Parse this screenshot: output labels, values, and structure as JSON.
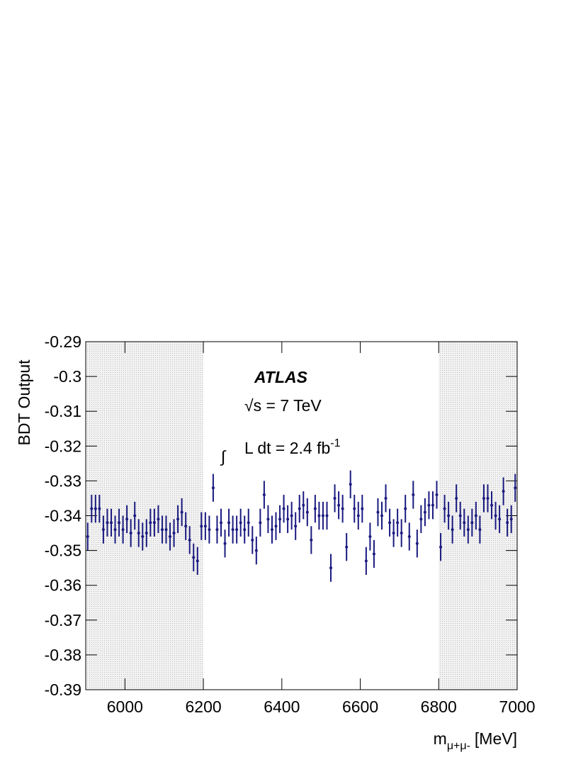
{
  "chart_data": {
    "type": "errorbar",
    "ylabel": "BDT Output",
    "xlabel": {
      "main": "m",
      "sub": "μ+μ-",
      "unit": "[MeV]"
    },
    "annotations": {
      "experiment": "ATLAS",
      "energy": "√s = 7 TeV",
      "integral": "∫",
      "lumi": "L dt = 2.4 fb",
      "lumi_sup": "-1"
    },
    "xlim": [
      5900,
      7000
    ],
    "xticks": [
      6000,
      6200,
      6400,
      6600,
      6800,
      7000
    ],
    "ylim": [
      -0.39,
      -0.29
    ],
    "yticks": [
      -0.29,
      -0.3,
      -0.31,
      -0.32,
      -0.33,
      -0.34,
      -0.35,
      -0.36,
      -0.37,
      -0.38,
      -0.39
    ],
    "grid": false,
    "shaded": [
      [
        5900,
        6200
      ],
      [
        6800,
        7000
      ]
    ],
    "color": "#1a1a80",
    "error": 0.004,
    "x": [
      5905,
      5915,
      5925,
      5935,
      5945,
      5955,
      5965,
      5975,
      5985,
      5995,
      6005,
      6015,
      6025,
      6035,
      6045,
      6055,
      6065,
      6075,
      6085,
      6095,
      6105,
      6115,
      6125,
      6135,
      6145,
      6155,
      6165,
      6175,
      6185,
      6195,
      6205,
      6215,
      6225,
      6235,
      6245,
      6255,
      6265,
      6275,
      6285,
      6295,
      6305,
      6315,
      6325,
      6335,
      6345,
      6355,
      6365,
      6375,
      6385,
      6395,
      6405,
      6415,
      6425,
      6435,
      6445,
      6455,
      6465,
      6475,
      6485,
      6495,
      6505,
      6515,
      6525,
      6535,
      6545,
      6555,
      6565,
      6575,
      6585,
      6595,
      6605,
      6615,
      6625,
      6635,
      6645,
      6655,
      6665,
      6675,
      6685,
      6695,
      6705,
      6715,
      6725,
      6735,
      6745,
      6755,
      6765,
      6775,
      6785,
      6795,
      6805,
      6815,
      6825,
      6835,
      6845,
      6855,
      6865,
      6875,
      6885,
      6895,
      6905,
      6915,
      6925,
      6935,
      6945,
      6955,
      6965,
      6975,
      6985,
      6995
    ],
    "values": [
      -0.346,
      -0.338,
      -0.338,
      -0.338,
      -0.344,
      -0.342,
      -0.342,
      -0.344,
      -0.342,
      -0.344,
      -0.341,
      -0.345,
      -0.34,
      -0.345,
      -0.346,
      -0.345,
      -0.342,
      -0.342,
      -0.341,
      -0.344,
      -0.344,
      -0.346,
      -0.345,
      -0.341,
      -0.339,
      -0.343,
      -0.347,
      -0.352,
      -0.353,
      -0.343,
      -0.343,
      -0.344,
      -0.332,
      -0.344,
      -0.342,
      -0.348,
      -0.342,
      -0.344,
      -0.344,
      -0.342,
      -0.344,
      -0.342,
      -0.347,
      -0.35,
      -0.342,
      -0.334,
      -0.341,
      -0.344,
      -0.343,
      -0.341,
      -0.338,
      -0.341,
      -0.34,
      -0.343,
      -0.338,
      -0.337,
      -0.339,
      -0.347,
      -0.338,
      -0.34,
      -0.34,
      -0.34,
      -0.355,
      -0.335,
      -0.337,
      -0.338,
      -0.349,
      -0.331,
      -0.338,
      -0.34,
      -0.338,
      -0.353,
      -0.346,
      -0.351,
      -0.339,
      -0.34,
      -0.335,
      -0.342,
      -0.345,
      -0.342,
      -0.345,
      -0.338,
      -0.346,
      -0.334,
      -0.348,
      -0.341,
      -0.339,
      -0.337,
      -0.337,
      -0.334,
      -0.349,
      -0.338,
      -0.34,
      -0.344,
      -0.335,
      -0.34,
      -0.342,
      -0.344,
      -0.342,
      -0.34,
      -0.344,
      -0.335,
      -0.335,
      -0.337,
      -0.34,
      -0.341,
      -0.333,
      -0.342,
      -0.341,
      -0.332
    ]
  }
}
